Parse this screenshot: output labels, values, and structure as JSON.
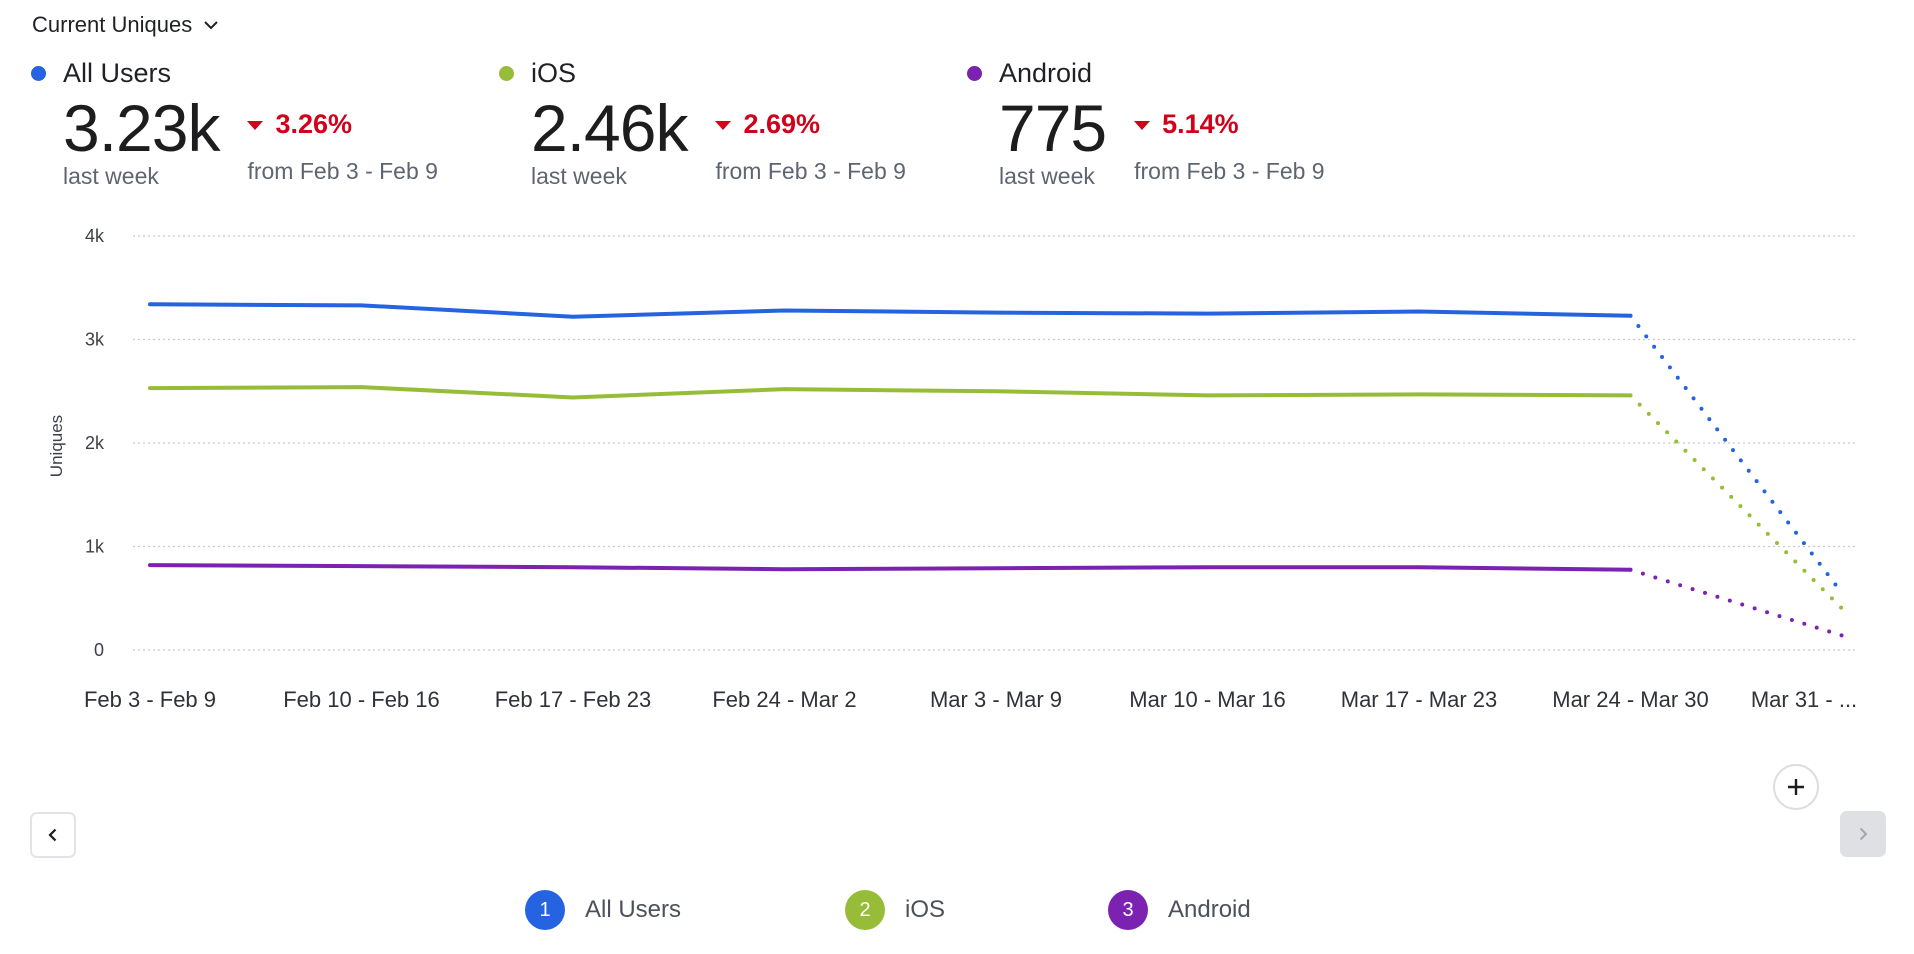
{
  "header": {
    "metric_label": "Current Uniques"
  },
  "kpis": [
    {
      "name": "All Users",
      "color": "#2563e0",
      "value": "3.23k",
      "value_caption": "last week",
      "change": "3.26%",
      "change_direction": "down",
      "change_caption": "from Feb 3 - Feb 9"
    },
    {
      "name": "iOS",
      "color": "#97bd38",
      "value": "2.46k",
      "value_caption": "last week",
      "change": "2.69%",
      "change_direction": "down",
      "change_caption": "from Feb 3 - Feb 9"
    },
    {
      "name": "Android",
      "color": "#7b22b0",
      "value": "775",
      "value_caption": "last week",
      "change": "5.14%",
      "change_direction": "down",
      "change_caption": "from Feb 3 - Feb 9"
    }
  ],
  "legend": [
    {
      "index": "1",
      "label": "All Users",
      "color": "#2563e0"
    },
    {
      "index": "2",
      "label": "iOS",
      "color": "#97bd38"
    },
    {
      "index": "3",
      "label": "Android",
      "color": "#7b22b0"
    }
  ],
  "controls": {
    "prev_icon": "chevron-left-icon",
    "next_icon": "chevron-right-icon",
    "zoom_icon": "plus-icon"
  },
  "chart_data": {
    "type": "line",
    "title": "",
    "xlabel": "",
    "ylabel": "Uniques",
    "ylim": [
      0,
      4000
    ],
    "yticks": [
      0,
      1000,
      2000,
      3000,
      4000
    ],
    "ytick_labels": [
      "0",
      "1k",
      "2k",
      "3k",
      "4k"
    ],
    "grid": true,
    "categories": [
      "Feb 3 - Feb 9",
      "Feb 10 - Feb 16",
      "Feb 17 - Feb 23",
      "Feb 24 - Mar 2",
      "Mar 3 - Mar 9",
      "Mar 10 - Mar 16",
      "Mar 17 - Mar 23",
      "Mar 24 - Mar 30",
      "Mar 31 - ..."
    ],
    "incomplete_from_index": 7,
    "series": [
      {
        "name": "All Users",
        "color": "#2563e0",
        "values": [
          3340,
          3330,
          3220,
          3280,
          3260,
          3250,
          3270,
          3230,
          550
        ]
      },
      {
        "name": "iOS",
        "color": "#97bd38",
        "values": [
          2530,
          2540,
          2440,
          2520,
          2500,
          2460,
          2470,
          2460,
          400
        ]
      },
      {
        "name": "Android",
        "color": "#7b22b0",
        "values": [
          820,
          810,
          800,
          780,
          790,
          800,
          800,
          775,
          140
        ]
      }
    ],
    "legend_position": "bottom"
  }
}
